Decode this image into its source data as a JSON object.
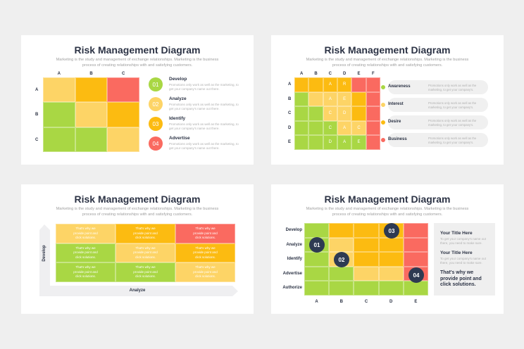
{
  "title": "Risk Management Diagram",
  "subtitle": "Marketing is the study and management of exchange relationships. Marketing is the business process of creating relationships with and satisfying customers.",
  "colors": {
    "green": "#a9d744",
    "light_yellow": "#fdd466",
    "orange": "#fcbb11",
    "red": "#fa6a60",
    "navy": "#2e3a52"
  },
  "slide1": {
    "cols": [
      "A",
      "B",
      "C"
    ],
    "rows": [
      "A",
      "B",
      "C"
    ],
    "matrix": [
      [
        "y",
        "o",
        "r"
      ],
      [
        "g",
        "y",
        "o"
      ],
      [
        "g",
        "g",
        "y"
      ]
    ],
    "items": [
      {
        "num": "01",
        "title": "Develop",
        "desc": "Promotions only work as well as the marketing, to get your company's name out there.",
        "color": "#a9d744"
      },
      {
        "num": "02",
        "title": "Analyze",
        "desc": "Promotions only work as well as the marketing, to get your company's name out there.",
        "color": "#fdd466"
      },
      {
        "num": "03",
        "title": "Identify",
        "desc": "Promotions only work as well as the marketing, to get your company's name out there.",
        "color": "#fcbb11"
      },
      {
        "num": "04",
        "title": "Advertise",
        "desc": "Promotions only work as well as the marketing, to get your company's name out there.",
        "color": "#fa6a60"
      }
    ]
  },
  "slide2": {
    "cols": [
      "A",
      "B",
      "C",
      "D",
      "E",
      "F"
    ],
    "rows": [
      "A",
      "B",
      "C",
      "D",
      "E"
    ],
    "matrix": [
      [
        "o",
        "o",
        "o",
        "o",
        "r",
        "r"
      ],
      [
        "g",
        "y",
        "y",
        "y",
        "o",
        "r"
      ],
      [
        "g",
        "g",
        "y",
        "y",
        "o",
        "r"
      ],
      [
        "g",
        "g",
        "g",
        "y",
        "y",
        "r"
      ],
      [
        "g",
        "g",
        "g",
        "g",
        "g",
        "r"
      ]
    ],
    "letters": [
      [
        "",
        "",
        "A",
        "R",
        "",
        ""
      ],
      [
        "",
        "",
        "A",
        "E",
        "",
        ""
      ],
      [
        "",
        "",
        "C",
        "D",
        "",
        ""
      ],
      [
        "",
        "",
        "C",
        "A",
        "C",
        ""
      ],
      [
        "",
        "",
        "D",
        "A",
        "E",
        ""
      ]
    ],
    "items": [
      {
        "title": "Awareness",
        "desc": "Promotions only work as well as the marketing, to get your company's.",
        "color": "#a9d744"
      },
      {
        "title": "Interest",
        "desc": "Promotions only work as well as the marketing, to get your company's.",
        "color": "#fdd466"
      },
      {
        "title": "Desire",
        "desc": "Promotions only work as well as the marketing, to get your company's.",
        "color": "#fcbb11"
      },
      {
        "title": "Business",
        "desc": "Promotions only work as well as the marketing, to get your company's.",
        "color": "#fa6a60"
      }
    ]
  },
  "slide3": {
    "matrix": [
      [
        "y",
        "o",
        "r"
      ],
      [
        "g",
        "y",
        "o"
      ],
      [
        "g",
        "g",
        "y"
      ]
    ],
    "cell_text": "That's why we provide point and click solutions.",
    "y_axis": "Develop",
    "x_axis": "Analyze"
  },
  "slide4": {
    "rows": [
      "Develop",
      "Analyze",
      "Identify",
      "Advertise",
      "Authorize"
    ],
    "cols": [
      "A",
      "B",
      "C",
      "D",
      "E"
    ],
    "matrix": [
      [
        "g",
        "o",
        "o",
        "o",
        "r"
      ],
      [
        "g",
        "y",
        "o",
        "o",
        "r"
      ],
      [
        "g",
        "y",
        "o",
        "o",
        "r"
      ],
      [
        "g",
        "g",
        "y",
        "y",
        "r"
      ],
      [
        "g",
        "g",
        "g",
        "g",
        "g"
      ]
    ],
    "markers": [
      "01",
      "02",
      "03",
      "04"
    ],
    "panel": {
      "title1": "Your Title Here",
      "desc1": "To get your company's name out there, you need to make sure.",
      "title2": "Your Title Here",
      "desc2": "To get your company's name out there, you need to make sure.",
      "tagline": "That's why we provide point and click solutions."
    }
  }
}
